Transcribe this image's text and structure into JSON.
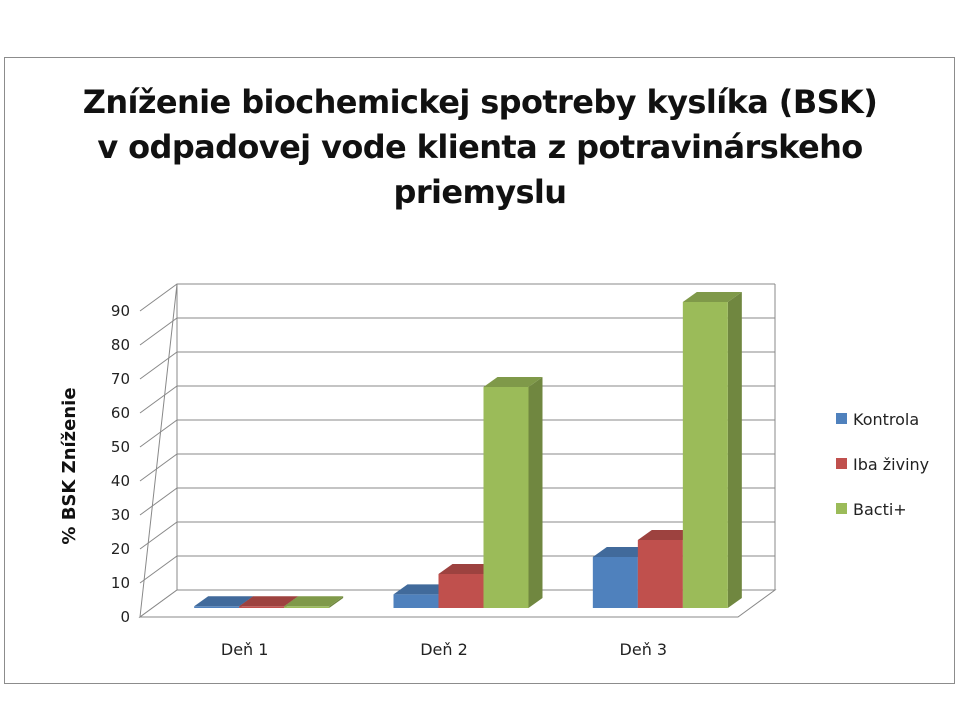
{
  "chart_data": {
    "type": "bar",
    "title_lines": [
      "Zníženie biochemickej spotreby kyslíka (BSK)",
      "v odpadovej vode klienta z potravinárskeho",
      "priemyslu"
    ],
    "xlabel": "",
    "ylabel": "% BSK Zníženie",
    "ylim": [
      0,
      90
    ],
    "yticks": [
      0,
      10,
      20,
      30,
      40,
      50,
      60,
      70,
      80,
      90
    ],
    "grid": true,
    "legend_position": "right",
    "categories": [
      "Deň 1",
      "Deň 2",
      "Deň 3"
    ],
    "series": [
      {
        "name": "Kontrola",
        "values": [
          0.5,
          4,
          15
        ],
        "color": "#4f81bd"
      },
      {
        "name": "Iba živiny",
        "values": [
          0.5,
          10,
          20
        ],
        "color": "#c0504d"
      },
      {
        "name": "Bacti+",
        "values": [
          0.5,
          65,
          90
        ],
        "color": "#9bbb59"
      }
    ]
  }
}
